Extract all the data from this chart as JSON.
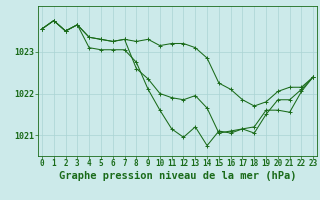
{
  "title": "Graphe pression niveau de la mer (hPa)",
  "background_color": "#cceaea",
  "line_color": "#1a6b1a",
  "grid_color": "#aad4d4",
  "series": {
    "line1": [
      1023.55,
      1023.75,
      1023.5,
      1023.65,
      1023.35,
      1023.3,
      1023.25,
      1023.3,
      1023.25,
      1023.3,
      1023.15,
      1023.2,
      1023.2,
      1023.1,
      1022.85,
      1022.25,
      1022.1,
      1021.85,
      1021.7,
      1021.8,
      1022.05,
      1022.15,
      1022.15,
      1022.4
    ],
    "line2": [
      1023.55,
      1023.75,
      1023.5,
      1023.65,
      1023.1,
      1023.05,
      1023.05,
      1023.05,
      1022.75,
      1022.1,
      1021.6,
      1021.15,
      1020.95,
      1021.2,
      1020.75,
      1021.1,
      1021.05,
      1021.15,
      1021.05,
      1021.5,
      1021.85,
      1021.85,
      1022.1,
      1022.4
    ],
    "line3": [
      1023.55,
      1023.75,
      1023.5,
      1023.65,
      1023.35,
      1023.3,
      1023.25,
      1023.3,
      1022.6,
      1022.35,
      1022.0,
      1021.9,
      1021.85,
      1021.95,
      1021.65,
      1021.05,
      1021.1,
      1021.15,
      1021.2,
      1021.6,
      1021.6,
      1021.55,
      1022.05,
      1022.4
    ]
  },
  "hours": [
    0,
    1,
    2,
    3,
    4,
    5,
    6,
    7,
    8,
    9,
    10,
    11,
    12,
    13,
    14,
    15,
    16,
    17,
    18,
    19,
    20,
    21,
    22,
    23
  ],
  "xlim": [
    -0.3,
    23.3
  ],
  "ylim": [
    1020.5,
    1024.1
  ],
  "yticks": [
    1021,
    1022,
    1023
  ],
  "title_fontsize": 7.5,
  "tick_fontsize": 5.5,
  "marker_size": 2.5,
  "linewidth": 0.75
}
